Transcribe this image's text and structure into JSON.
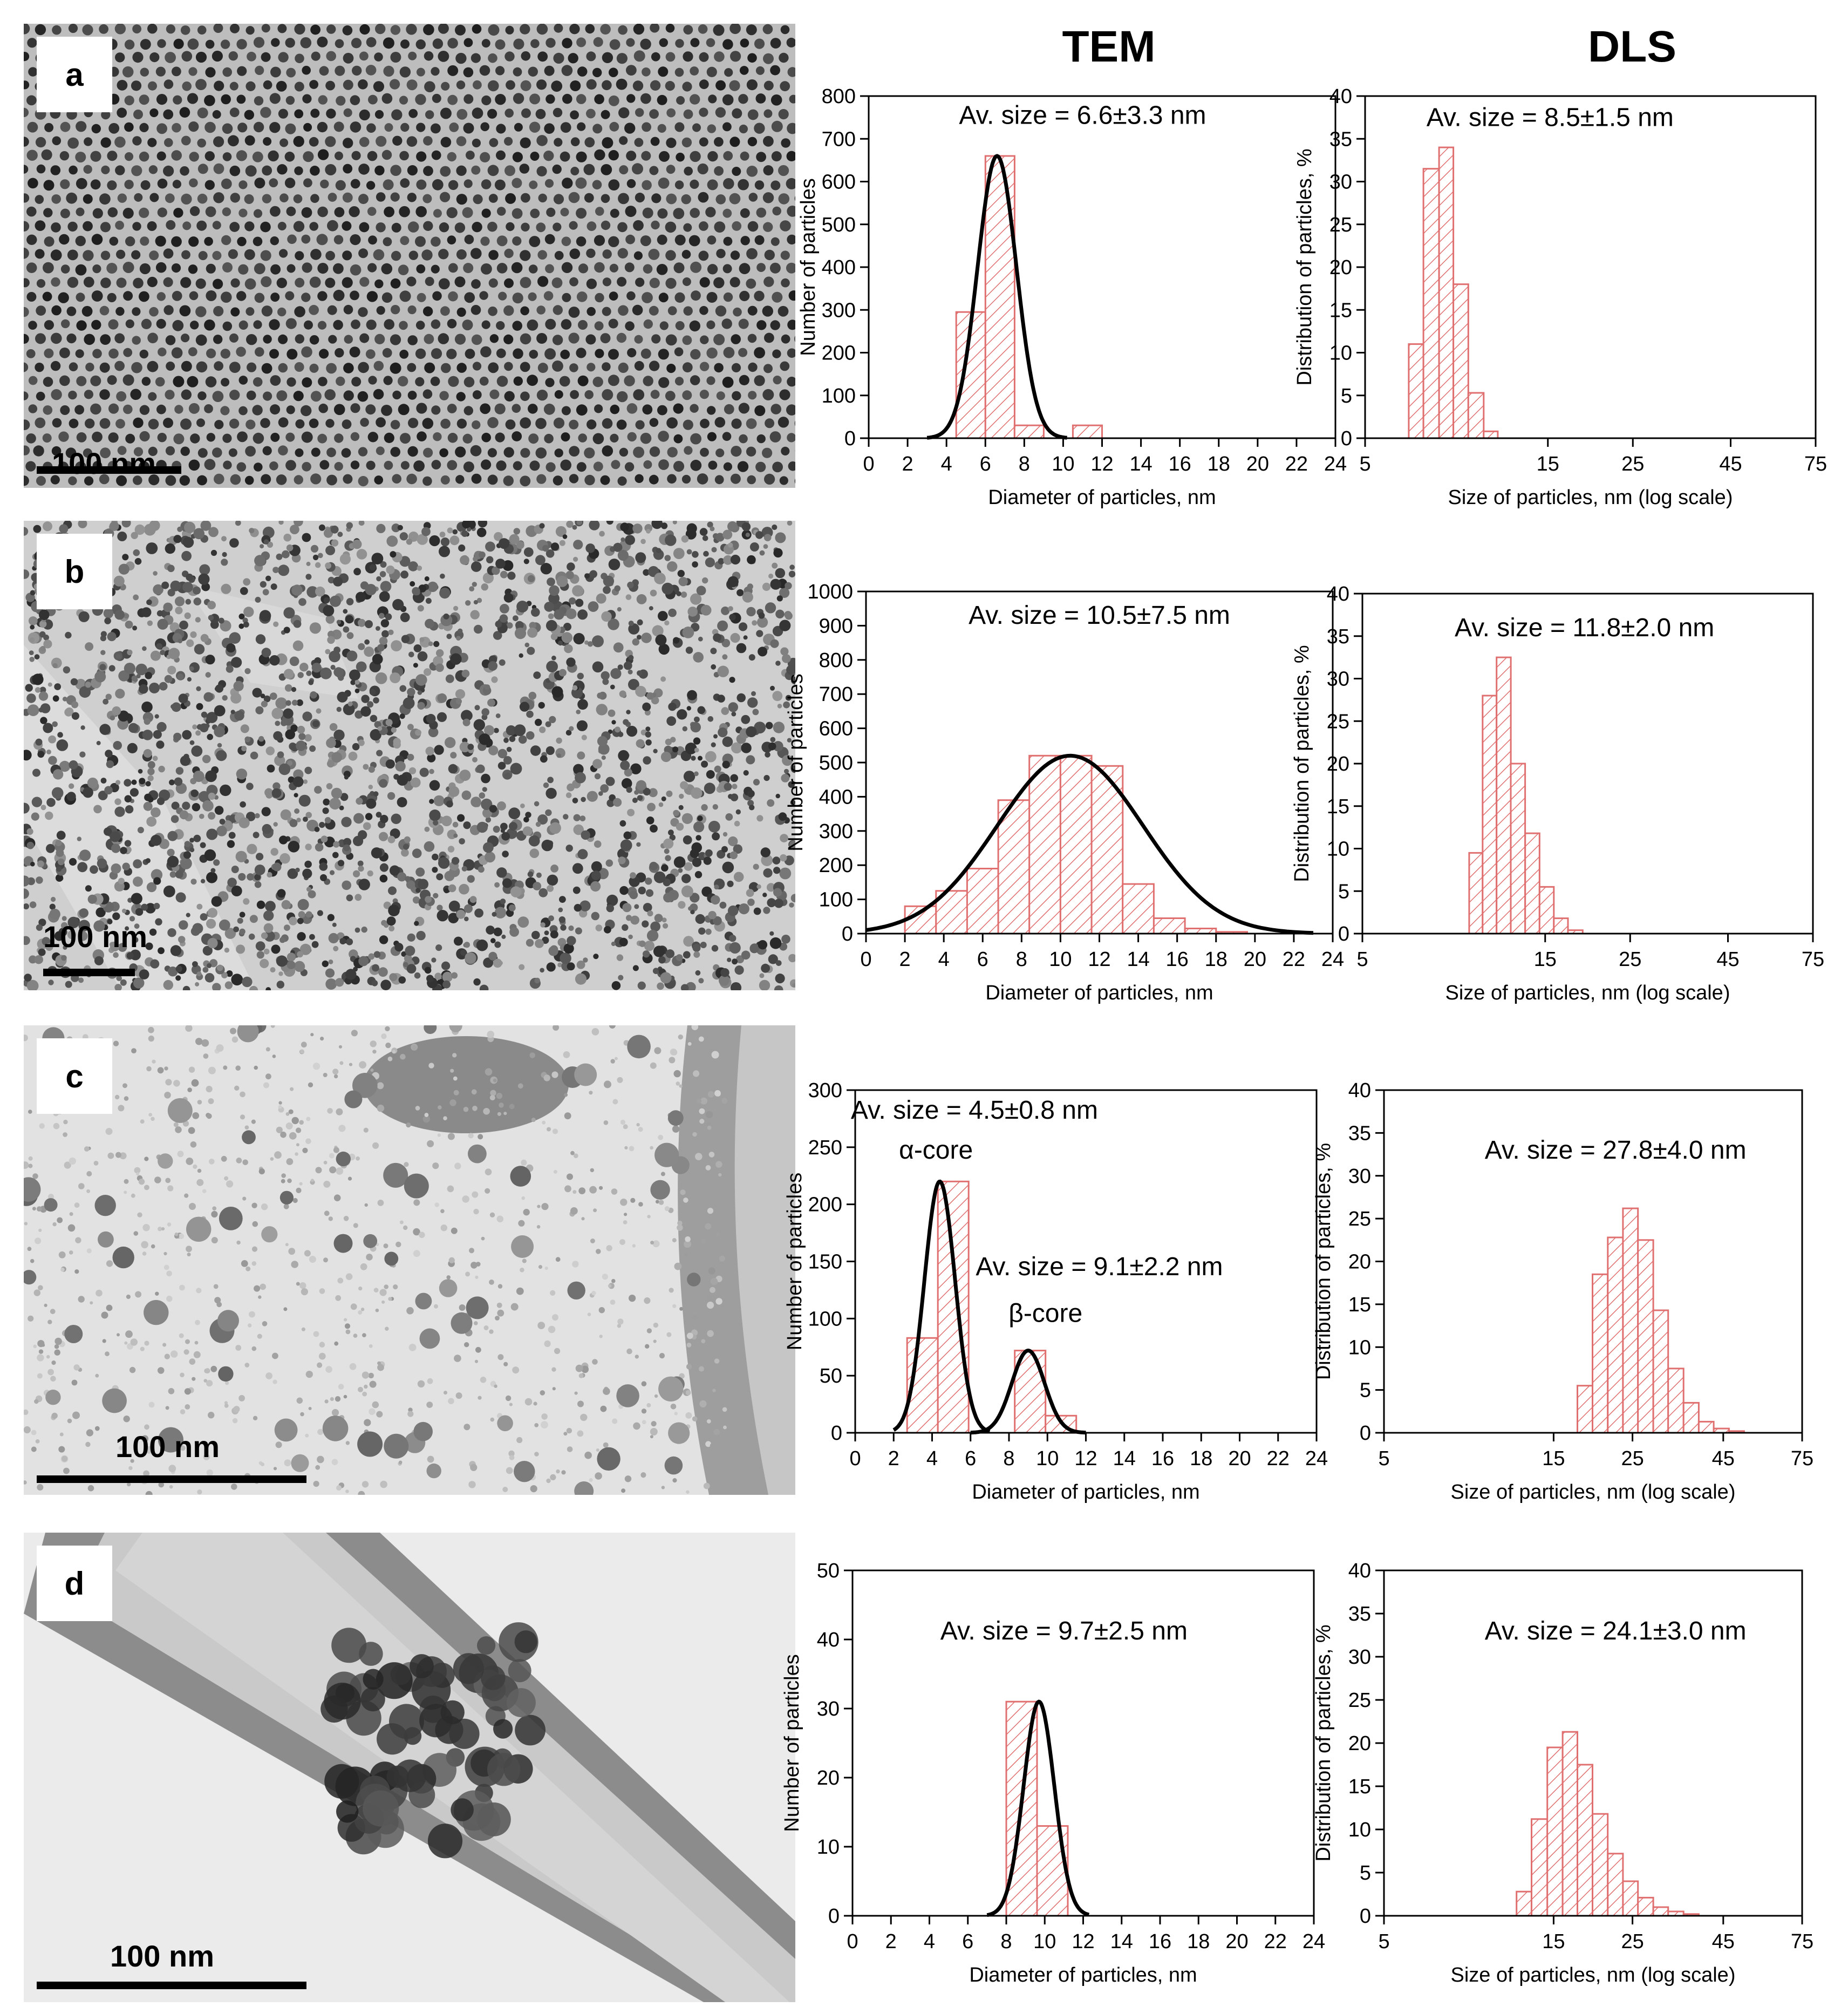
{
  "columns": {
    "tem": "TEM",
    "dls": "DLS"
  },
  "panels": [
    {
      "letter": "a",
      "scale": "100 nm"
    },
    {
      "letter": "b",
      "scale": "100 nm"
    },
    {
      "letter": "c",
      "scale": "100 nm"
    },
    {
      "letter": "d",
      "scale": "100 nm"
    }
  ],
  "colors": {
    "bar": "#e07070",
    "fit": "#000000"
  },
  "chart_data": [
    {
      "id": "tem-a",
      "type": "bar",
      "panel": "a",
      "xlabel": "Diameter of particles, nm",
      "ylabel": "Number of particles",
      "xlim": [
        0,
        24
      ],
      "ylim": [
        0,
        800
      ],
      "xticks": [
        0,
        2,
        4,
        6,
        8,
        10,
        12,
        14,
        16,
        18,
        20,
        22,
        24
      ],
      "yticks": [
        0,
        100,
        200,
        300,
        400,
        500,
        600,
        700,
        800
      ],
      "bin_width": 1.5,
      "bars": [
        {
          "x": 5.25,
          "y": 295
        },
        {
          "x": 6.75,
          "y": 660
        },
        {
          "x": 8.25,
          "y": 30
        },
        {
          "x": 11.25,
          "y": 30
        }
      ],
      "fits": [
        {
          "mu": 6.6,
          "sigma": 1.0,
          "amp": 660,
          "from": 3.0,
          "to": 10.2
        }
      ],
      "annotations": [
        {
          "text": "Av. size = 6.6±3.3 nm",
          "x": 11,
          "y": 735
        }
      ]
    },
    {
      "id": "dls-a",
      "type": "bar",
      "panel": "a",
      "xlabel": "Size of particles, nm (log scale)",
      "ylabel": "Distribution of particles, %",
      "xscale": "log",
      "xlim": [
        5,
        75
      ],
      "ylim": [
        0,
        40
      ],
      "xticks": [
        5,
        15,
        25,
        45,
        75
      ],
      "yticks": [
        0,
        5,
        10,
        15,
        20,
        25,
        30,
        35,
        40
      ],
      "bars": [
        {
          "x0": 6.5,
          "x1": 7.1,
          "y": 11
        },
        {
          "x0": 7.1,
          "x1": 7.8,
          "y": 31.5
        },
        {
          "x0": 7.8,
          "x1": 8.5,
          "y": 34
        },
        {
          "x0": 8.5,
          "x1": 9.3,
          "y": 18
        },
        {
          "x0": 9.3,
          "x1": 10.2,
          "y": 5.3
        },
        {
          "x0": 10.2,
          "x1": 11.1,
          "y": 0.8
        }
      ],
      "annotations": [
        {
          "text": "Av. size = 8.5±1.5 nm",
          "x": 15.2,
          "y": 36.5
        }
      ]
    },
    {
      "id": "tem-b",
      "type": "bar",
      "panel": "b",
      "xlabel": "Diameter of particles, nm",
      "ylabel": "Number of particles",
      "xlim": [
        0,
        24
      ],
      "ylim": [
        0,
        1000
      ],
      "xticks": [
        0,
        2,
        4,
        6,
        8,
        10,
        12,
        14,
        16,
        18,
        20,
        22,
        24
      ],
      "yticks": [
        0,
        100,
        200,
        300,
        400,
        500,
        600,
        700,
        800,
        900,
        1000
      ],
      "bin_width": 1.6,
      "bars": [
        {
          "x": 2.8,
          "y": 80
        },
        {
          "x": 4.4,
          "y": 125
        },
        {
          "x": 6.0,
          "y": 190
        },
        {
          "x": 7.6,
          "y": 390
        },
        {
          "x": 9.2,
          "y": 520
        },
        {
          "x": 10.8,
          "y": 520
        },
        {
          "x": 12.4,
          "y": 490
        },
        {
          "x": 14.0,
          "y": 145
        },
        {
          "x": 15.6,
          "y": 45
        },
        {
          "x": 17.2,
          "y": 15
        },
        {
          "x": 18.8,
          "y": 5
        }
      ],
      "fits": [
        {
          "mu": 10.5,
          "sigma": 3.75,
          "amp": 520,
          "from": 0,
          "to": 23
        }
      ],
      "annotations": [
        {
          "text": "Av. size = 10.5±7.5 nm",
          "x": 12,
          "y": 905
        }
      ]
    },
    {
      "id": "dls-b",
      "type": "bar",
      "panel": "b",
      "xlabel": "Size of particles, nm (log scale)",
      "ylabel": "Distribution of particles, %",
      "xscale": "log",
      "xlim": [
        5,
        75
      ],
      "ylim": [
        0,
        40
      ],
      "xticks": [
        5,
        15,
        25,
        45,
        75
      ],
      "yticks": [
        0,
        5,
        10,
        15,
        20,
        25,
        30,
        35,
        40
      ],
      "bars": [
        {
          "x0": 9.5,
          "x1": 10.3,
          "y": 9.5
        },
        {
          "x0": 10.3,
          "x1": 11.2,
          "y": 28
        },
        {
          "x0": 11.2,
          "x1": 12.2,
          "y": 32.5
        },
        {
          "x0": 12.2,
          "x1": 13.3,
          "y": 20
        },
        {
          "x0": 13.3,
          "x1": 14.5,
          "y": 11.8
        },
        {
          "x0": 14.5,
          "x1": 15.8,
          "y": 5.5
        },
        {
          "x0": 15.8,
          "x1": 17.2,
          "y": 1.8
        },
        {
          "x0": 17.2,
          "x1": 18.8,
          "y": 0.4
        }
      ],
      "annotations": [
        {
          "text": "Av. size = 11.8±2.0 nm",
          "x": 19,
          "y": 35
        }
      ]
    },
    {
      "id": "tem-c",
      "type": "bar",
      "panel": "c",
      "xlabel": "Diameter of particles, nm",
      "ylabel": "Number of particles",
      "xlim": [
        0,
        24
      ],
      "ylim": [
        0,
        300
      ],
      "xticks": [
        0,
        2,
        4,
        6,
        8,
        10,
        12,
        14,
        16,
        18,
        20,
        22,
        24
      ],
      "yticks": [
        0,
        50,
        100,
        150,
        200,
        250,
        300
      ],
      "bin_width": 1.6,
      "bars": [
        {
          "x": 3.5,
          "y": 83
        },
        {
          "x": 5.1,
          "y": 220
        },
        {
          "x": 9.1,
          "y": 72
        },
        {
          "x": 10.7,
          "y": 15
        }
      ],
      "fits": [
        {
          "mu": 4.4,
          "sigma": 0.8,
          "amp": 220,
          "from": 2.0,
          "to": 7.0
        },
        {
          "mu": 9.0,
          "sigma": 0.85,
          "amp": 72,
          "from": 6.0,
          "to": 12.0
        }
      ],
      "annotations": [
        {
          "text": "Av. size = 4.5±0.8 nm",
          "x": 6.2,
          "y": 275
        },
        {
          "text": "α-core",
          "x": 4.2,
          "y": 240
        },
        {
          "text": "Av. size = 9.1±2.2 nm",
          "x": 12.7,
          "y": 138
        },
        {
          "text": "β-core",
          "x": 9.9,
          "y": 97
        }
      ]
    },
    {
      "id": "dls-c",
      "type": "bar",
      "panel": "c",
      "xlabel": "Size of particles, nm (log scale)",
      "ylabel": "Distribution of particles, %",
      "xscale": "log",
      "xlim": [
        5,
        75
      ],
      "ylim": [
        0,
        40
      ],
      "xticks": [
        5,
        15,
        25,
        45,
        75
      ],
      "yticks": [
        0,
        5,
        10,
        15,
        20,
        25,
        30,
        35,
        40
      ],
      "bars": [
        {
          "x0": 17.5,
          "x1": 19.3,
          "y": 5.5
        },
        {
          "x0": 19.3,
          "x1": 21.3,
          "y": 18.5
        },
        {
          "x0": 21.3,
          "x1": 23.5,
          "y": 22.8
        },
        {
          "x0": 23.5,
          "x1": 25.9,
          "y": 26.2
        },
        {
          "x0": 25.9,
          "x1": 28.6,
          "y": 22.5
        },
        {
          "x0": 28.6,
          "x1": 31.5,
          "y": 14.3
        },
        {
          "x0": 31.5,
          "x1": 34.8,
          "y": 7.5
        },
        {
          "x0": 34.8,
          "x1": 38.4,
          "y": 3.5
        },
        {
          "x0": 38.4,
          "x1": 42.3,
          "y": 1.3
        },
        {
          "x0": 42.3,
          "x1": 46.7,
          "y": 0.5
        },
        {
          "x0": 46.7,
          "x1": 51.5,
          "y": 0.2
        }
      ],
      "annotations": [
        {
          "text": "Av. size = 27.8±4.0 nm",
          "x": 22.4,
          "y": 32
        }
      ]
    },
    {
      "id": "tem-d",
      "type": "bar",
      "panel": "d",
      "xlabel": "Diameter of particles, nm",
      "ylabel": "Number of particles",
      "xlim": [
        0,
        24
      ],
      "ylim": [
        0,
        50
      ],
      "xticks": [
        0,
        2,
        4,
        6,
        8,
        10,
        12,
        14,
        16,
        18,
        20,
        22,
        24
      ],
      "yticks": [
        0,
        10,
        20,
        30,
        40,
        50
      ],
      "bin_width": 1.6,
      "bars": [
        {
          "x": 8.8,
          "y": 31
        },
        {
          "x": 10.4,
          "y": 13
        }
      ],
      "fits": [
        {
          "mu": 9.7,
          "sigma": 0.8,
          "amp": 31,
          "from": 7.0,
          "to": 12.3
        }
      ],
      "annotations": [
        {
          "text": "Av. size = 9.7±2.5 nm",
          "x": 11,
          "y": 40
        }
      ]
    },
    {
      "id": "dls-d",
      "type": "bar",
      "panel": "d",
      "xlabel": "Size of particles, nm (log scale)",
      "ylabel": "Distribution of particles, %",
      "xscale": "log",
      "xlim": [
        5,
        75
      ],
      "ylim": [
        0,
        40
      ],
      "xticks": [
        5,
        15,
        25,
        45,
        75
      ],
      "yticks": [
        0,
        5,
        10,
        15,
        20,
        25,
        30,
        35,
        40
      ],
      "bars": [
        {
          "x0": 11.8,
          "x1": 13.0,
          "y": 2.8
        },
        {
          "x0": 13.0,
          "x1": 14.4,
          "y": 11.2
        },
        {
          "x0": 14.4,
          "x1": 15.9,
          "y": 19.5
        },
        {
          "x0": 15.9,
          "x1": 17.5,
          "y": 21.3
        },
        {
          "x0": 17.5,
          "x1": 19.3,
          "y": 17.5
        },
        {
          "x0": 19.3,
          "x1": 21.3,
          "y": 11.8
        },
        {
          "x0": 21.3,
          "x1": 23.5,
          "y": 7.2
        },
        {
          "x0": 23.5,
          "x1": 25.9,
          "y": 4.0
        },
        {
          "x0": 25.9,
          "x1": 28.6,
          "y": 2.1
        },
        {
          "x0": 28.6,
          "x1": 31.5,
          "y": 1.0
        },
        {
          "x0": 31.5,
          "x1": 34.8,
          "y": 0.5
        },
        {
          "x0": 34.8,
          "x1": 38.4,
          "y": 0.2
        }
      ],
      "annotations": [
        {
          "text": "Av. size = 24.1±3.0 nm",
          "x": 22.4,
          "y": 32
        }
      ]
    }
  ]
}
